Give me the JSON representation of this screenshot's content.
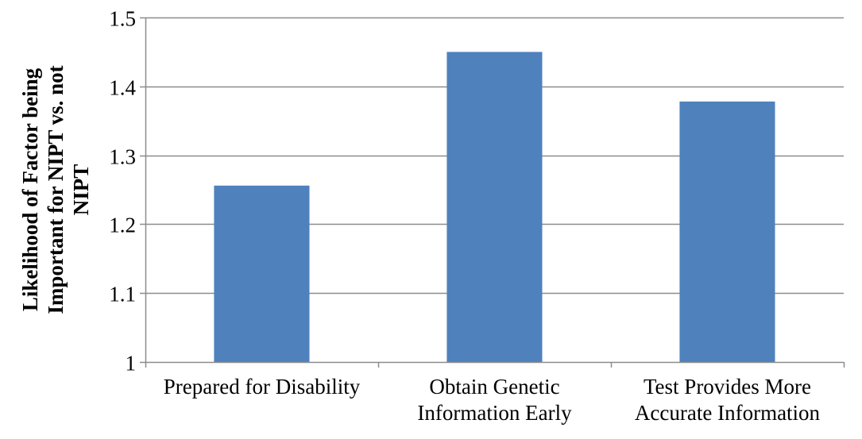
{
  "chart_data": {
    "type": "bar",
    "categories": [
      [
        "Prepared for Disability"
      ],
      [
        "Obtain Genetic",
        "Information Early"
      ],
      [
        "Test Provides More",
        "Accurate Information"
      ]
    ],
    "values": [
      1.256,
      1.45,
      1.378
    ],
    "title": "",
    "xlabel": "",
    "ylabel_lines": [
      "Likelihood of  Factor being",
      "Important for NIPT vs. not",
      "NIPT"
    ],
    "ylim": [
      1,
      1.5
    ],
    "yticks": [
      1,
      1.1,
      1.2,
      1.3,
      1.4,
      1.5
    ],
    "ytick_labels": [
      "1",
      "1.1",
      "1.2",
      "1.3",
      "1.4",
      "1.5"
    ],
    "grid": true,
    "legend": "none",
    "colors": {
      "bar": "#4F81BD",
      "grid": "#8C8C8C",
      "axis": "#8C8C8C",
      "text": "#000000"
    }
  }
}
